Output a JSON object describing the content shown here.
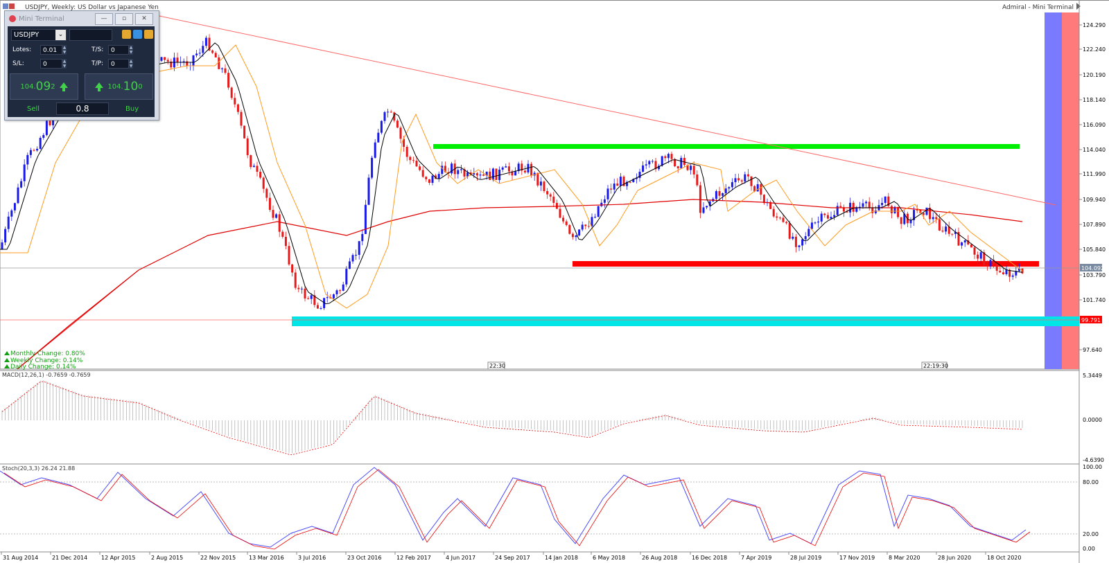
{
  "header": {
    "symbol_title": "USDJPY, Weekly: US Dollar vs Japanese Yen",
    "right_title": "Admiral - Mini Terminal"
  },
  "mini_terminal": {
    "title": "Mini Terminal",
    "symbol": "USDJPY",
    "lots_label": "Lotes:",
    "lots_value": "0.01",
    "ts_label": "T/S:",
    "ts_value": "0",
    "sl_label": "S/L:",
    "sl_value": "0",
    "tp_label": "T/P:",
    "tp_value": "0",
    "sell_price_prefix": "104.",
    "sell_price_big": "09",
    "sell_price_suffix": "2",
    "buy_price_prefix": "104.",
    "buy_price_big": "10",
    "buy_price_suffix": "0",
    "sell_label": "Sell",
    "buy_label": "Buy",
    "spread": "0.8"
  },
  "price_axis": {
    "labels": [
      "124.290",
      "122.240",
      "120.190",
      "118.140",
      "116.090",
      "114.040",
      "111.990",
      "109.940",
      "107.890",
      "105.840",
      "103.790",
      "101.740",
      "99.791",
      "97.640"
    ],
    "current_price": "104.092",
    "marked_price": "99.791",
    "line_color_marked": "#ff0000",
    "current_color": "#7a8aa0"
  },
  "time_axis": {
    "labels": [
      "31 Aug 2014",
      "21 Dec 2014",
      "12 Apr 2015",
      "2 Aug 2015",
      "22 Nov 2015",
      "13 Mar 2016",
      "3 Jul 2016",
      "23 Oct 2016",
      "12 Feb 2017",
      "4 Jun 2017",
      "24 Sep 2017",
      "14 Jan 2018",
      "6 May 2018",
      "26 Aug 2018",
      "16 Dec 2018",
      "7 Apr 2019",
      "28 Jul 2019",
      "17 Nov 2019",
      "8 Mar 2020",
      "28 Jun 2020",
      "18 Oct 2020"
    ],
    "marker1": "22:30",
    "marker2": "22:19:30"
  },
  "changes": {
    "monthly": "Monthly Change: 0.80%",
    "weekly": "Weekly Change: 0.14%",
    "daily": "Daily Change: 0.14%"
  },
  "macd": {
    "title": "MACD(12,26,1) -0.7659 -0.7659",
    "labels": [
      "5.3449",
      "0.0000",
      "-4.6390"
    ]
  },
  "stoch": {
    "title": "Stoch(20,3,3) 26.24 21.88",
    "labels": [
      "100.00",
      "80.00",
      "20.00",
      "0.00"
    ]
  },
  "zones": {
    "resistance_color": "#00ee00",
    "support_color": "#ff0000",
    "lower_support_color": "#00e5e5",
    "trendline_color": "#ff6666",
    "blue_band_color": "#6b6bff",
    "red_band_color": "#ff6b6b"
  }
}
